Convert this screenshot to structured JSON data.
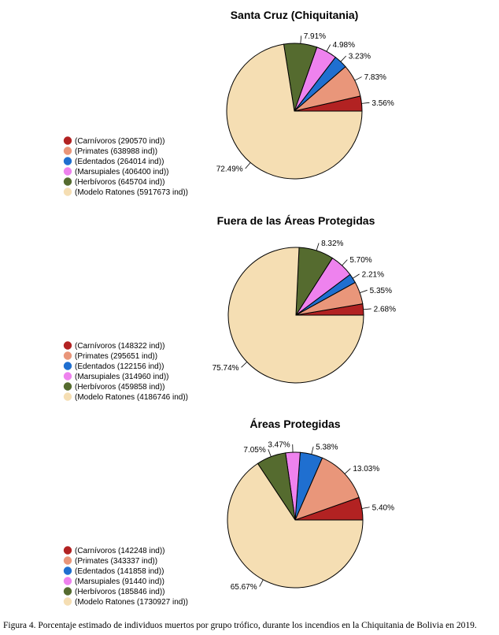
{
  "colors": {
    "Carnivoros": "#b22222",
    "Primates": "#e9967a",
    "Edentados": "#1f6fd0",
    "Marsupiales": "#ee82ee",
    "Herbivoros": "#556b2f",
    "ModeloRatones": "#f5deb3"
  },
  "caption": "Figura 4. Porcentaje estimado de individuos muertos por grupo trófico, durante los incendios en la Chiquitania de Bolivia en 2019.",
  "chart_data": [
    {
      "type": "pie",
      "title": "Santa Cruz (Chiquitania)",
      "slices": [
        {
          "key": "Carnivoros",
          "value": 3.56,
          "label": "3.56%",
          "legend": "(Carnívoros (290570 ind))"
        },
        {
          "key": "Primates",
          "value": 7.83,
          "label": "7.83%",
          "legend": "(Primates (638988 ind))"
        },
        {
          "key": "Edentados",
          "value": 3.23,
          "label": "3.23%",
          "legend": "(Edentados (264014 ind))"
        },
        {
          "key": "Marsupiales",
          "value": 4.98,
          "label": "4.98%",
          "legend": "(Marsupiales (406400 ind))"
        },
        {
          "key": "Herbivoros",
          "value": 7.91,
          "label": "7.91%",
          "legend": "(Herbívoros (645704 ind))"
        },
        {
          "key": "ModeloRatones",
          "value": 72.49,
          "label": "72.49%",
          "legend": "(Modelo Ratones (5917673 ind))"
        }
      ]
    },
    {
      "type": "pie",
      "title": "Fuera de las Áreas Protegidas",
      "slices": [
        {
          "key": "Carnivoros",
          "value": 2.68,
          "label": "2.68%",
          "legend": "(Carnívoros (148322 ind))"
        },
        {
          "key": "Primates",
          "value": 5.35,
          "label": "5.35%",
          "legend": "(Primates (295651 ind))"
        },
        {
          "key": "Edentados",
          "value": 2.21,
          "label": "2.21%",
          "legend": "(Edentados (122156 ind))"
        },
        {
          "key": "Marsupiales",
          "value": 5.7,
          "label": "5.70%",
          "legend": "(Marsupiales (314960 ind))"
        },
        {
          "key": "Herbivoros",
          "value": 8.32,
          "label": "8.32%",
          "legend": "(Herbívoros (459858 ind))"
        },
        {
          "key": "ModeloRatones",
          "value": 75.74,
          "label": "75.74%",
          "legend": "(Modelo Ratones (4186746 ind))"
        }
      ]
    },
    {
      "type": "pie",
      "title": "Áreas Protegidas",
      "slices": [
        {
          "key": "Carnivoros",
          "value": 5.4,
          "label": "5.40%",
          "legend": "(Carnívoros (142248 ind))"
        },
        {
          "key": "Primates",
          "value": 13.03,
          "label": "13.03%",
          "legend": "(Primates (343337 ind))"
        },
        {
          "key": "Edentados",
          "value": 5.38,
          "label": "5.38%",
          "legend": "(Edentados (141858 ind))"
        },
        {
          "key": "Marsupiales",
          "value": 3.47,
          "label": "3.47%",
          "legend": "(Marsupiales (91440 ind))"
        },
        {
          "key": "Herbivoros",
          "value": 7.05,
          "label": "7.05%",
          "legend": "(Herbívoros (185846 ind))"
        },
        {
          "key": "ModeloRatones",
          "value": 65.67,
          "label": "65.67%",
          "legend": "(Modelo Ratones (1730927 ind))"
        }
      ]
    }
  ]
}
